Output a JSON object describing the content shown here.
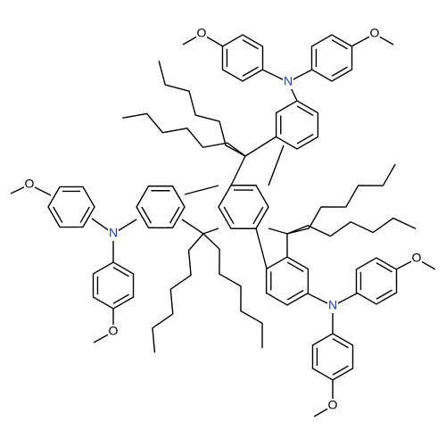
{
  "atoms": {
    "nitrogen": [
      "N",
      "N",
      "N"
    ],
    "oxygen": [
      "O",
      "O",
      "O",
      "O",
      "O",
      "O"
    ]
  }
}
